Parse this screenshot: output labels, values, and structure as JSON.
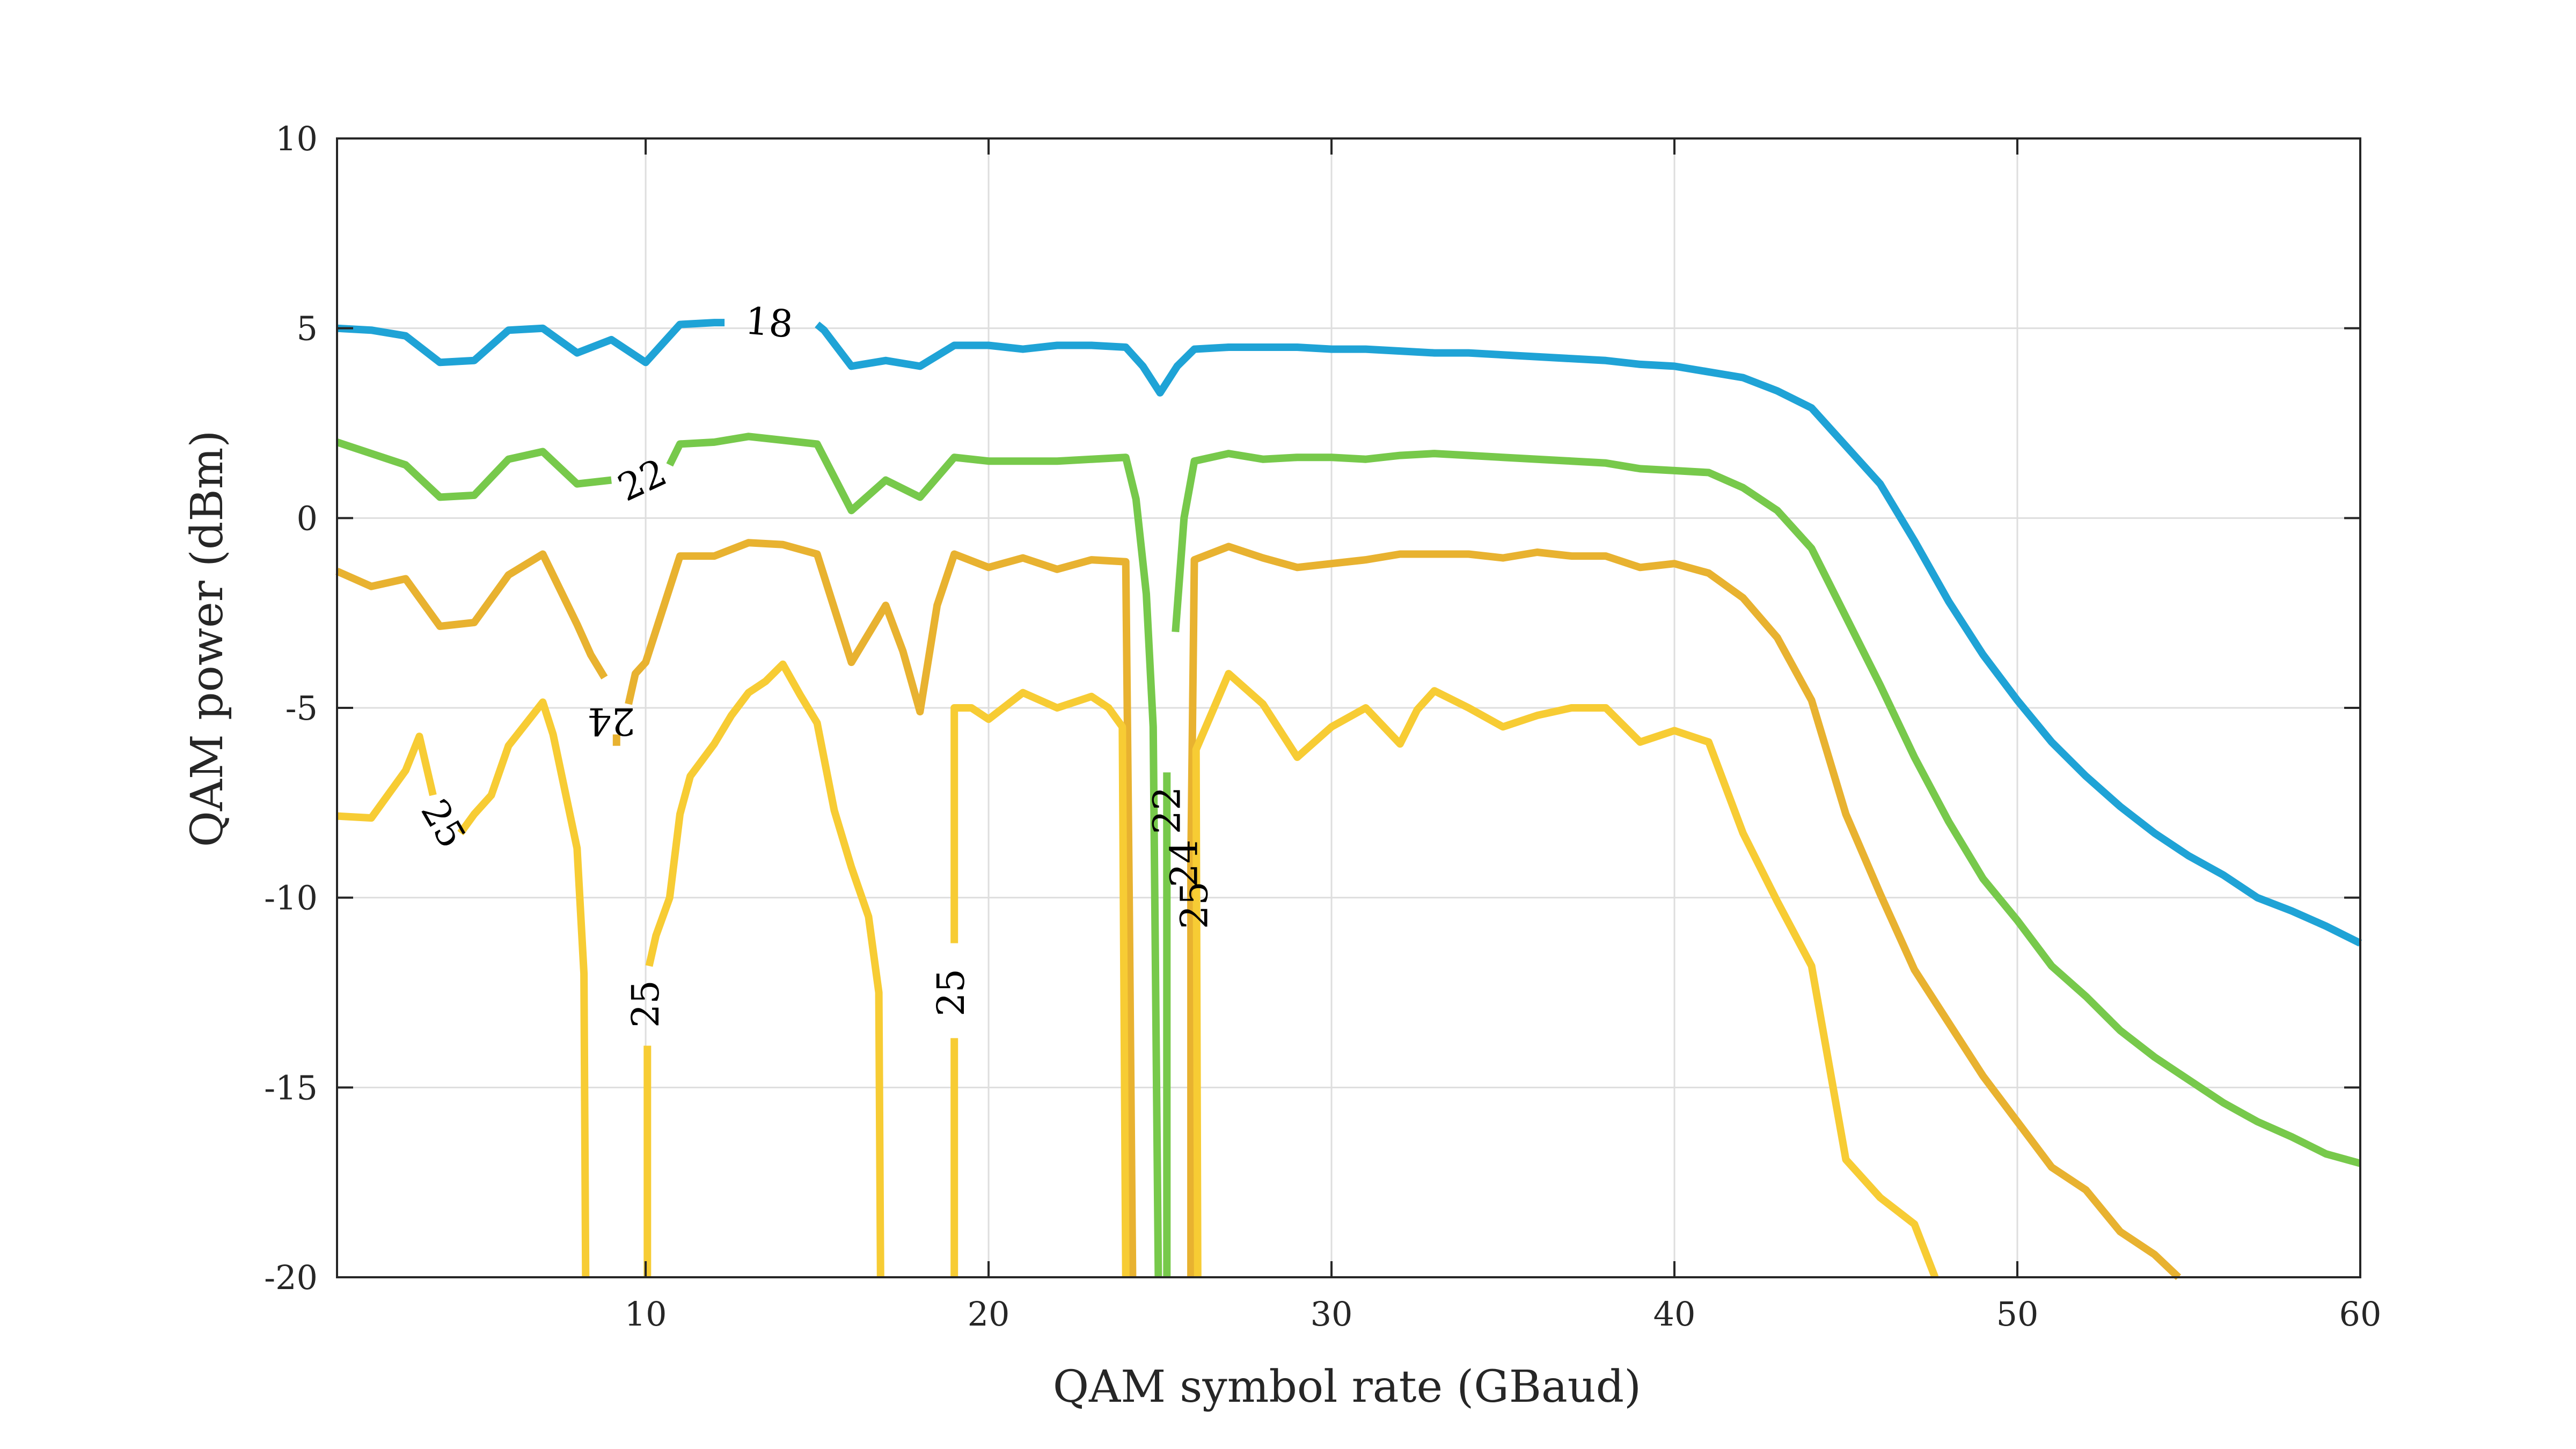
{
  "chart_data": {
    "type": "line",
    "subtype": "contour",
    "title": "",
    "xlabel": "QAM symbol rate (GBaud)",
    "ylabel": "QAM power (dBm)",
    "xlim": [
      1,
      60
    ],
    "ylim": [
      -20,
      10
    ],
    "xticks": [
      10,
      20,
      30,
      40,
      50,
      60
    ],
    "yticks": [
      -20,
      -15,
      -10,
      -5,
      0,
      5,
      10
    ],
    "grid": true,
    "legend": "none",
    "colors": {
      "18": "#1fa3d6",
      "22": "#77c94b",
      "24": "#e8b230",
      "25": "#f7cc34",
      "axes": "#262626",
      "grid": "#dedede"
    },
    "series": [
      {
        "level": "18",
        "segments": [
          [
            [
              1,
              5.0
            ],
            [
              2,
              4.95
            ],
            [
              3,
              4.8
            ],
            [
              4,
              4.1
            ],
            [
              5,
              4.15
            ],
            [
              6,
              4.95
            ],
            [
              7,
              5.0
            ],
            [
              8,
              4.35
            ],
            [
              9,
              4.7
            ],
            [
              10,
              4.1
            ],
            [
              11,
              5.1
            ],
            [
              12,
              5.15
            ],
            [
              12.3,
              5.15
            ]
          ],
          [
            [
              15.0,
              5.1
            ],
            [
              15.2,
              4.95
            ],
            [
              16,
              4.0
            ],
            [
              17,
              4.15
            ],
            [
              18,
              4.0
            ],
            [
              19,
              4.55
            ],
            [
              20,
              4.55
            ],
            [
              21,
              4.45
            ],
            [
              22,
              4.55
            ],
            [
              23,
              4.55
            ],
            [
              24,
              4.5
            ],
            [
              24.5,
              4.0
            ],
            [
              25,
              3.3
            ],
            [
              25.5,
              4.0
            ],
            [
              26,
              4.45
            ],
            [
              27,
              4.5
            ],
            [
              28,
              4.5
            ],
            [
              29,
              4.5
            ],
            [
              30,
              4.45
            ],
            [
              31,
              4.45
            ],
            [
              32,
              4.4
            ],
            [
              33,
              4.35
            ],
            [
              34,
              4.35
            ],
            [
              35,
              4.3
            ],
            [
              36,
              4.25
            ],
            [
              37,
              4.2
            ],
            [
              38,
              4.15
            ],
            [
              39,
              4.05
            ],
            [
              40,
              4.0
            ],
            [
              41,
              3.85
            ],
            [
              42,
              3.7
            ],
            [
              43,
              3.35
            ],
            [
              44,
              2.9
            ],
            [
              45,
              1.9
            ],
            [
              46,
              0.9
            ],
            [
              47,
              -0.6
            ],
            [
              48,
              -2.2
            ],
            [
              49,
              -3.6
            ],
            [
              50,
              -4.8
            ],
            [
              51,
              -5.9
            ],
            [
              52,
              -6.8
            ],
            [
              53,
              -7.6
            ],
            [
              54,
              -8.3
            ],
            [
              55,
              -8.9
            ],
            [
              56,
              -9.4
            ],
            [
              57,
              -10.0
            ],
            [
              58,
              -10.35
            ],
            [
              59,
              -10.75
            ],
            [
              60,
              -11.2
            ]
          ]
        ]
      },
      {
        "level": "22",
        "segments": [
          [
            [
              1,
              2.0
            ],
            [
              2,
              1.7
            ],
            [
              3,
              1.4
            ],
            [
              4,
              0.55
            ],
            [
              5,
              0.6
            ],
            [
              6,
              1.55
            ],
            [
              7,
              1.75
            ],
            [
              8,
              0.9
            ],
            [
              9,
              1.0
            ]
          ],
          [
            [
              10.7,
              1.4
            ],
            [
              11,
              1.95
            ],
            [
              12,
              2.0
            ],
            [
              13,
              2.15
            ],
            [
              14,
              2.05
            ],
            [
              15,
              1.95
            ],
            [
              16,
              0.2
            ],
            [
              17,
              1.0
            ],
            [
              18,
              0.55
            ],
            [
              19,
              1.6
            ],
            [
              20,
              1.5
            ],
            [
              21,
              1.5
            ],
            [
              22,
              1.5
            ],
            [
              23,
              1.55
            ],
            [
              24,
              1.6
            ],
            [
              24.3,
              0.5
            ],
            [
              24.6,
              -2.0
            ],
            [
              24.8,
              -5.5
            ],
            [
              24.95,
              -20
            ]
          ],
          [
            [
              25.2,
              -20
            ],
            [
              25.2,
              -6.7
            ]
          ],
          [
            [
              25.45,
              -3.0
            ],
            [
              25.7,
              0.0
            ],
            [
              26,
              1.5
            ],
            [
              27,
              1.7
            ],
            [
              28,
              1.55
            ],
            [
              29,
              1.6
            ],
            [
              30,
              1.6
            ],
            [
              31,
              1.55
            ],
            [
              32,
              1.65
            ],
            [
              33,
              1.7
            ],
            [
              34,
              1.65
            ],
            [
              35,
              1.6
            ],
            [
              36,
              1.55
            ],
            [
              37,
              1.5
            ],
            [
              38,
              1.45
            ],
            [
              39,
              1.3
            ],
            [
              40,
              1.25
            ],
            [
              41,
              1.2
            ],
            [
              42,
              0.8
            ],
            [
              43,
              0.2
            ],
            [
              44,
              -0.8
            ],
            [
              45,
              -2.6
            ],
            [
              46,
              -4.4
            ],
            [
              47,
              -6.3
            ],
            [
              48,
              -8.0
            ],
            [
              49,
              -9.5
            ],
            [
              50,
              -10.6
            ],
            [
              51,
              -11.8
            ],
            [
              52,
              -12.6
            ],
            [
              53,
              -13.5
            ],
            [
              54,
              -14.2
            ],
            [
              55,
              -14.8
            ],
            [
              56,
              -15.4
            ],
            [
              57,
              -15.9
            ],
            [
              58,
              -16.3
            ],
            [
              59,
              -16.75
            ],
            [
              60,
              -17.0
            ]
          ]
        ]
      },
      {
        "level": "24",
        "segments": [
          [
            [
              1,
              -1.4
            ],
            [
              2,
              -1.8
            ],
            [
              3,
              -1.6
            ],
            [
              4,
              -2.85
            ],
            [
              5,
              -2.75
            ],
            [
              6,
              -1.5
            ],
            [
              7,
              -0.95
            ],
            [
              8,
              -2.8
            ],
            [
              8.4,
              -3.6
            ],
            [
              8.8,
              -4.2
            ]
          ],
          [
            [
              9.15,
              -5.7
            ],
            [
              9.15,
              -6.0
            ]
          ],
          [
            [
              9.5,
              -4.9
            ],
            [
              9.7,
              -4.1
            ],
            [
              10,
              -3.8
            ],
            [
              11,
              -1.0
            ],
            [
              12,
              -1.0
            ],
            [
              13,
              -0.65
            ],
            [
              14,
              -0.7
            ],
            [
              15,
              -0.95
            ],
            [
              16,
              -3.8
            ],
            [
              17,
              -2.3
            ],
            [
              17.5,
              -3.5
            ],
            [
              18,
              -5.1
            ],
            [
              18.5,
              -2.3
            ],
            [
              19,
              -0.95
            ],
            [
              20,
              -1.3
            ],
            [
              21,
              -1.05
            ],
            [
              22,
              -1.35
            ],
            [
              23,
              -1.1
            ],
            [
              24,
              -1.15
            ],
            [
              24.1,
              -10.0
            ],
            [
              24.2,
              -20
            ]
          ],
          [
            [
              25.9,
              -20
            ],
            [
              25.9,
              -9.0
            ],
            [
              26,
              -1.1
            ],
            [
              27,
              -0.75
            ],
            [
              28,
              -1.05
            ],
            [
              29,
              -1.3
            ],
            [
              30,
              -1.2
            ],
            [
              31,
              -1.1
            ],
            [
              32,
              -0.95
            ],
            [
              33,
              -0.95
            ],
            [
              34,
              -0.95
            ],
            [
              35,
              -1.05
            ],
            [
              36,
              -0.9
            ],
            [
              37,
              -1.0
            ],
            [
              38,
              -1.0
            ],
            [
              39,
              -1.3
            ],
            [
              40,
              -1.2
            ],
            [
              41,
              -1.45
            ],
            [
              42,
              -2.1
            ],
            [
              43,
              -3.15
            ],
            [
              44,
              -4.8
            ],
            [
              45,
              -7.8
            ],
            [
              46,
              -9.9
            ],
            [
              47,
              -11.9
            ],
            [
              48,
              -13.3
            ],
            [
              49,
              -14.7
            ],
            [
              50,
              -15.9
            ],
            [
              51,
              -17.1
            ],
            [
              52,
              -17.7
            ],
            [
              53,
              -18.8
            ],
            [
              54,
              -19.4
            ],
            [
              54.7,
              -20
            ]
          ]
        ]
      },
      {
        "level": "25",
        "segments": [
          [
            [
              1,
              -7.85
            ],
            [
              2,
              -7.9
            ],
            [
              3,
              -6.65
            ],
            [
              3.4,
              -5.75
            ],
            [
              3.8,
              -7.3
            ]
          ],
          [
            [
              4.6,
              -8.3
            ],
            [
              5,
              -7.8
            ],
            [
              5.5,
              -7.3
            ],
            [
              6,
              -6.0
            ],
            [
              7,
              -4.85
            ],
            [
              7.3,
              -5.7
            ],
            [
              8,
              -8.7
            ],
            [
              8.2,
              -12.0
            ],
            [
              8.25,
              -20
            ]
          ],
          [
            [
              10.05,
              -20
            ],
            [
              10.05,
              -13.9
            ]
          ],
          [
            [
              10.1,
              -11.8
            ],
            [
              10.3,
              -11.0
            ],
            [
              10.7,
              -10.0
            ],
            [
              11,
              -7.8
            ],
            [
              11.3,
              -6.8
            ],
            [
              12,
              -5.95
            ],
            [
              12.5,
              -5.2
            ],
            [
              13,
              -4.6
            ],
            [
              13.5,
              -4.3
            ],
            [
              14,
              -3.85
            ],
            [
              14.5,
              -4.65
            ],
            [
              15,
              -5.4
            ],
            [
              15.5,
              -7.7
            ],
            [
              16,
              -9.2
            ],
            [
              16.5,
              -10.5
            ],
            [
              16.8,
              -12.5
            ],
            [
              16.85,
              -20
            ]
          ],
          [
            [
              19.0,
              -20
            ],
            [
              19.0,
              -13.7
            ]
          ],
          [
            [
              19.0,
              -11.2
            ],
            [
              19.0,
              -5.0
            ],
            [
              19.5,
              -5.0
            ],
            [
              20,
              -5.3
            ],
            [
              21,
              -4.6
            ],
            [
              22,
              -5.0
            ],
            [
              23,
              -4.7
            ],
            [
              23.5,
              -5.0
            ],
            [
              23.9,
              -5.5
            ],
            [
              24.0,
              -20
            ]
          ],
          [
            [
              26.1,
              -20
            ],
            [
              26.05,
              -6.1
            ],
            [
              27,
              -4.1
            ],
            [
              28,
              -4.9
            ],
            [
              29,
              -6.3
            ],
            [
              30,
              -5.5
            ],
            [
              31,
              -5.0
            ],
            [
              32,
              -5.95
            ],
            [
              32.5,
              -5.05
            ],
            [
              33,
              -4.55
            ],
            [
              34,
              -5.0
            ],
            [
              35,
              -5.5
            ],
            [
              36,
              -5.2
            ],
            [
              37,
              -5.0
            ],
            [
              38,
              -5.0
            ],
            [
              39,
              -5.9
            ],
            [
              40,
              -5.6
            ],
            [
              41,
              -5.9
            ],
            [
              42,
              -8.3
            ],
            [
              43,
              -10.1
            ],
            [
              44,
              -11.8
            ],
            [
              45,
              -16.9
            ],
            [
              46,
              -17.9
            ],
            [
              47,
              -18.6
            ],
            [
              47.6,
              -20
            ]
          ]
        ]
      }
    ],
    "contour_labels": [
      {
        "text": "18",
        "x": 13.6,
        "y": 5.15,
        "rotation": 5
      },
      {
        "text": "22",
        "x": 9.9,
        "y": 1.0,
        "rotation": -25
      },
      {
        "text": "22",
        "x": 25.2,
        "y": -7.7,
        "rotation": -90
      },
      {
        "text": "24",
        "x": 9.0,
        "y": -5.35,
        "rotation": 180
      },
      {
        "text": "24",
        "x": 25.7,
        "y": -9.1,
        "rotation": -90
      },
      {
        "text": "25",
        "x": 4.1,
        "y": -8.05,
        "rotation": 60
      },
      {
        "text": "25",
        "x": 10.0,
        "y": -12.8,
        "rotation": -90
      },
      {
        "text": "25",
        "x": 18.9,
        "y": -12.5,
        "rotation": -90
      },
      {
        "text": "25",
        "x": 26.0,
        "y": -10.2,
        "rotation": -90
      }
    ]
  }
}
